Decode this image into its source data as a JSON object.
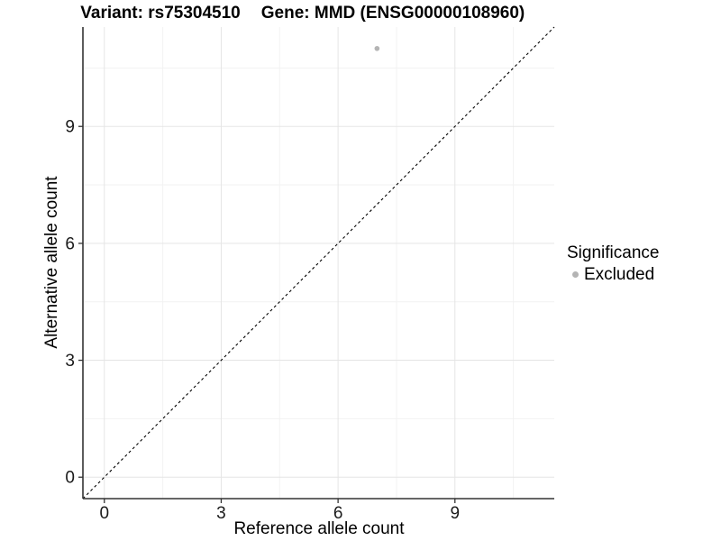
{
  "chart_data": {
    "type": "scatter",
    "titles": {
      "left": "Variant: rs75304510",
      "right": "Gene: MMD (ENSG00000108960)"
    },
    "xlabel": "Reference allele count",
    "ylabel": "Alternative allele count",
    "xlim": [
      -0.55,
      11.55
    ],
    "ylim": [
      -0.55,
      11.55
    ],
    "x_major_ticks": [
      0,
      3,
      6,
      9
    ],
    "y_major_ticks": [
      0,
      3,
      6,
      9
    ],
    "x_minor_gridlines": [
      1.5,
      4.5,
      7.5,
      10.5
    ],
    "y_minor_gridlines": [
      1.5,
      4.5,
      7.5,
      10.5
    ],
    "grid": true,
    "identity_line": {
      "style": "dashed",
      "equation": "y = x",
      "from": -0.55,
      "to": 11.55
    },
    "series": [
      {
        "name": "Excluded",
        "color": "#b4b4b4",
        "points": [
          {
            "x": 7,
            "y": 11
          }
        ]
      }
    ],
    "legend": {
      "title": "Significance",
      "position": "right",
      "items": [
        {
          "label": "Excluded",
          "color": "#b4b4b4"
        }
      ]
    },
    "colors": {
      "background": "#ffffff",
      "grid_major": "#e5e5e5",
      "grid_minor": "#f2f2f2",
      "axis_line": "#333333",
      "tick_mark": "#333333",
      "tick_text": "#1a1a1a",
      "identity_line": "#000000",
      "point": "#b4b4b4"
    }
  }
}
